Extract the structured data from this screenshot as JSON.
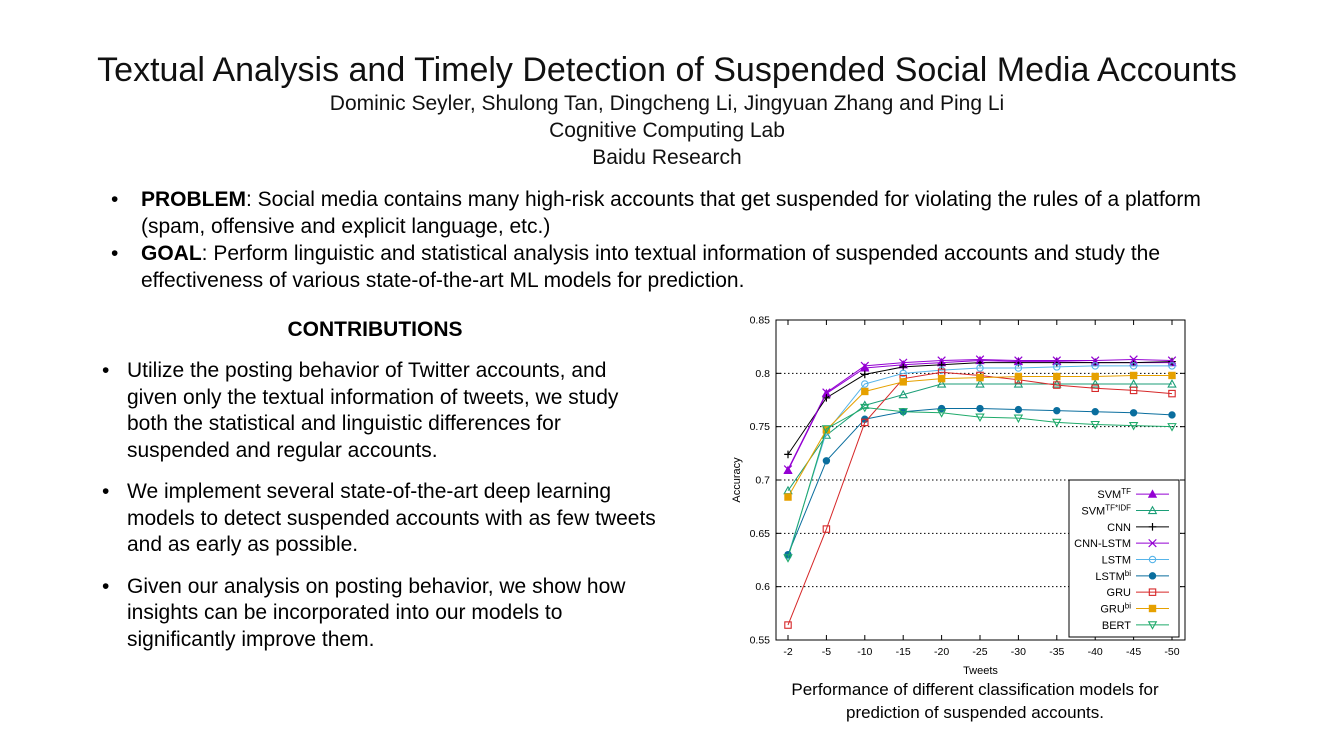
{
  "header": {
    "title": "Textual Analysis and Timely Detection of Suspended Social Media Accounts",
    "authors": "Dominic Seyler, Shulong Tan, Dingcheng Li, Jingyuan Zhang and Ping Li",
    "lab": "Cognitive Computing Lab",
    "org": "Baidu Research"
  },
  "bullets": [
    {
      "label": "PROBLEM",
      "text": ": Social media contains many high-risk accounts that get suspended for violating the rules of a platform (spam, offensive and explicit language, etc.)"
    },
    {
      "label": "GOAL",
      "text": ": Perform linguistic and statistical analysis into textual information of suspended accounts and study the effectiveness of various state-of-the-art ML models for prediction."
    }
  ],
  "contributions": {
    "heading": "CONTRIBUTIONS",
    "items": [
      "Utilize the posting behavior of Twitter accounts, and given only the textual information of tweets, we study both the statistical and linguistic differences for suspended and regular accounts.",
      "We implement several state-of-the-art deep learning models to detect suspended accounts with as few tweets and as early as possible.",
      "Given our analysis on posting behavior, we show how insights can be incorporated into our models to significantly improve them."
    ]
  },
  "bullet_symbol": "•",
  "caption": "Performance of different classification models for prediction of suspended accounts.",
  "chart_data": {
    "type": "line",
    "title": "",
    "xlabel": "Tweets",
    "ylabel": "Accuracy",
    "categories": [
      "-2",
      "-5",
      "-10",
      "-15",
      "-20",
      "-25",
      "-30",
      "-35",
      "-40",
      "-45",
      "-50"
    ],
    "ylim": [
      0.55,
      0.85
    ],
    "yticks": [
      "0.55",
      "0.6",
      "0.65",
      "0.7",
      "0.75",
      "0.8",
      "0.85"
    ],
    "grid": "horizontal dotted",
    "legend_position": "bottom-right",
    "series": [
      {
        "name": "SVM",
        "sup": "TF",
        "color": "#9400d3",
        "marker": "triangle-filled",
        "values": [
          0.709,
          0.781,
          0.805,
          0.808,
          0.81,
          0.812,
          0.811,
          0.811,
          0.81,
          0.81,
          0.81
        ]
      },
      {
        "name": "SVM",
        "sup": "TF*IDF",
        "color": "#1b9e77",
        "marker": "triangle-open",
        "values": [
          0.69,
          0.742,
          0.77,
          0.78,
          0.79,
          0.79,
          0.79,
          0.79,
          0.79,
          0.79,
          0.79
        ]
      },
      {
        "name": "CNN",
        "sup": "",
        "color": "#000000",
        "marker": "plus",
        "values": [
          0.724,
          0.777,
          0.799,
          0.806,
          0.808,
          0.81,
          0.81,
          0.81,
          0.81,
          0.81,
          0.811
        ]
      },
      {
        "name": "CNN-LSTM",
        "sup": "",
        "color": "#9400d3",
        "marker": "x",
        "values": [
          0.71,
          0.782,
          0.807,
          0.81,
          0.812,
          0.813,
          0.812,
          0.812,
          0.812,
          0.813,
          0.812
        ]
      },
      {
        "name": "LSTM",
        "sup": "",
        "color": "#56b4e9",
        "marker": "circle-open",
        "values": [
          0.629,
          0.745,
          0.79,
          0.8,
          0.803,
          0.805,
          0.805,
          0.806,
          0.807,
          0.807,
          0.807
        ]
      },
      {
        "name": "LSTM",
        "sup": "bi",
        "color": "#0a6e9e",
        "marker": "circle-filled",
        "values": [
          0.63,
          0.718,
          0.757,
          0.764,
          0.767,
          0.767,
          0.766,
          0.765,
          0.764,
          0.763,
          0.761
        ]
      },
      {
        "name": "GRU",
        "sup": "",
        "color": "#d62728",
        "marker": "square-open",
        "values": [
          0.564,
          0.654,
          0.754,
          0.795,
          0.801,
          0.798,
          0.794,
          0.789,
          0.786,
          0.784,
          0.781
        ]
      },
      {
        "name": "GRU",
        "sup": "bi",
        "color": "#e6a100",
        "marker": "square-filled",
        "values": [
          0.684,
          0.747,
          0.783,
          0.792,
          0.795,
          0.796,
          0.797,
          0.797,
          0.797,
          0.798,
          0.798
        ]
      },
      {
        "name": "BERT",
        "sup": "",
        "color": "#1faa6a",
        "marker": "triangle-down-open",
        "values": [
          0.627,
          0.748,
          0.768,
          0.764,
          0.763,
          0.759,
          0.758,
          0.754,
          0.752,
          0.751,
          0.75
        ]
      }
    ]
  }
}
